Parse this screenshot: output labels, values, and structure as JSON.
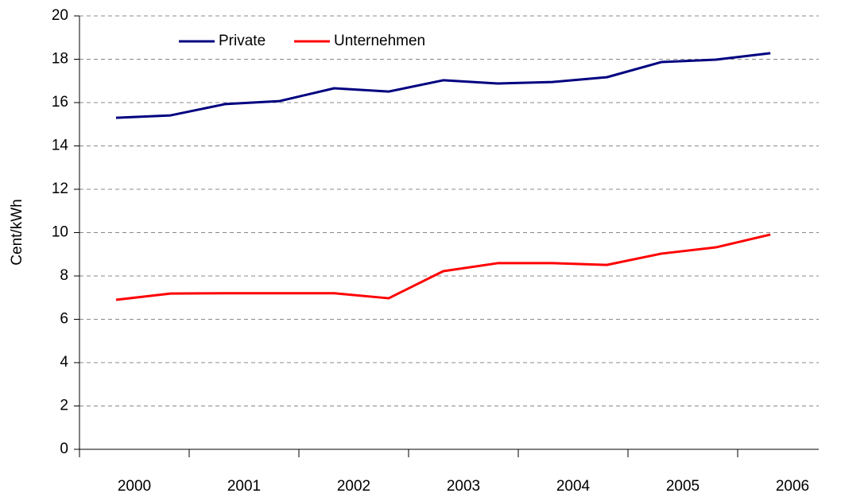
{
  "chart_data": {
    "type": "line",
    "y_label": "Cent/kWh",
    "categories": [
      "2000",
      null,
      "2001",
      null,
      "2002",
      null,
      "2003",
      null,
      "2004",
      null,
      "2005",
      null,
      "2006"
    ],
    "series": [
      {
        "name": "Private",
        "color": "#000080",
        "values": [
          15.3,
          15.41,
          15.93,
          16.07,
          16.66,
          16.51,
          17.03,
          16.88,
          16.95,
          17.17,
          17.87,
          17.98,
          18.28
        ]
      },
      {
        "name": "Unternehmen",
        "color": "#ff0000",
        "values": [
          6.9,
          7.19,
          7.2,
          7.2,
          7.2,
          6.97,
          8.22,
          8.59,
          8.59,
          8.51,
          9.03,
          9.32,
          9.91
        ]
      }
    ],
    "ylim": [
      0,
      20
    ],
    "yticks": [
      0,
      2,
      4,
      6,
      8,
      10,
      12,
      14,
      16,
      18,
      20
    ],
    "grid": true
  }
}
